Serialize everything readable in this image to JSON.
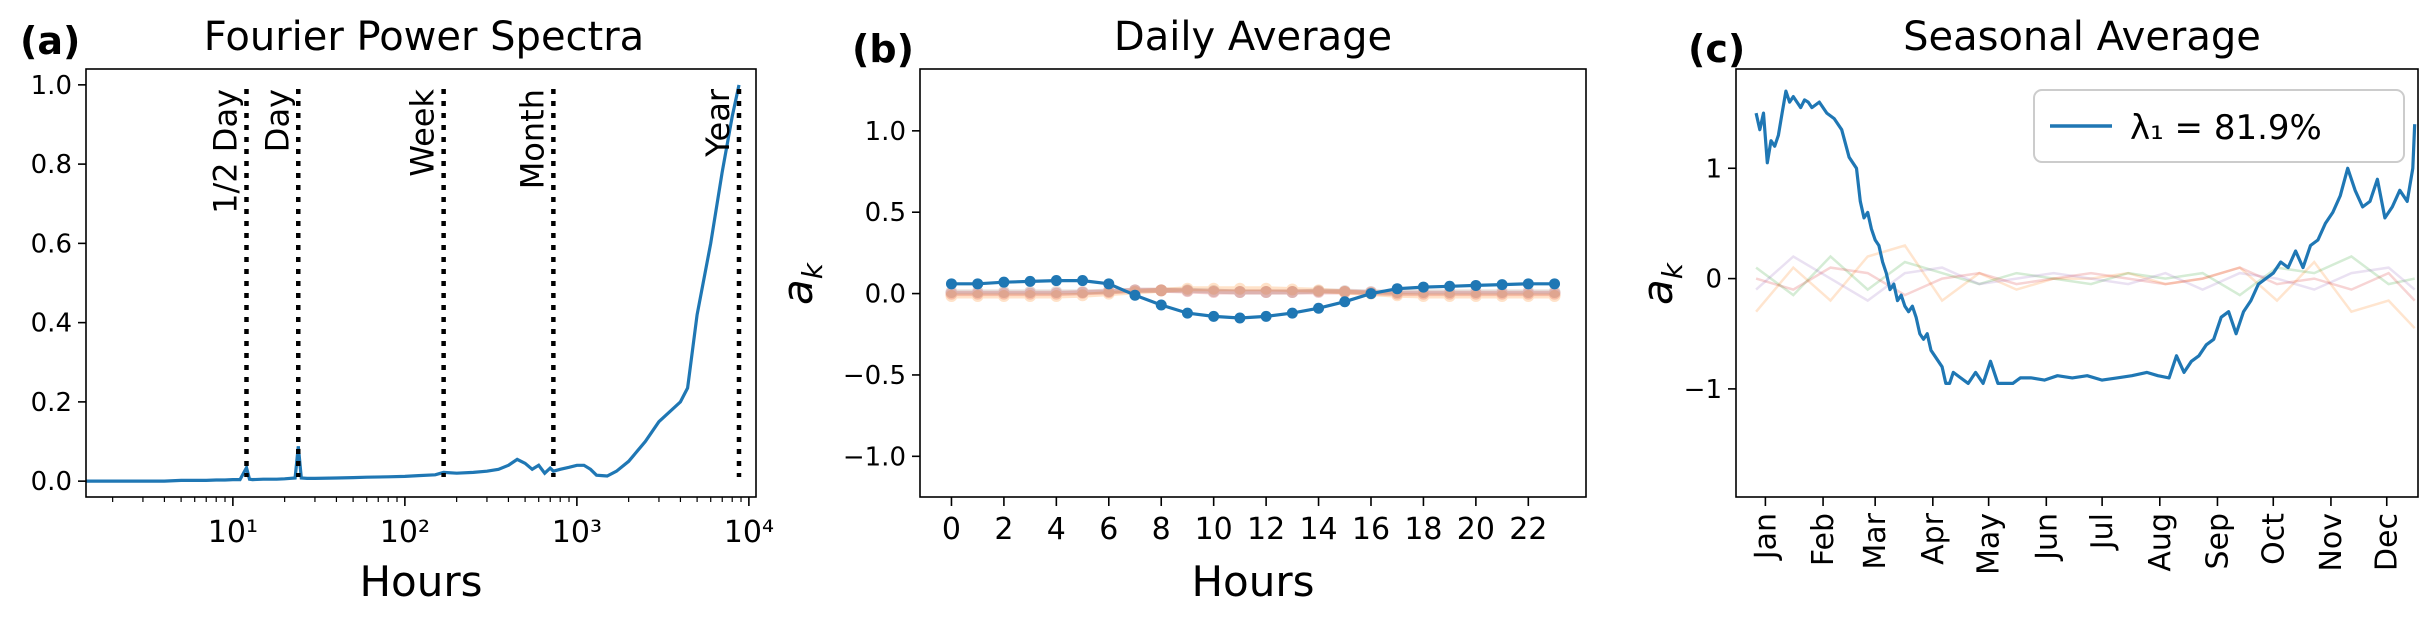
{
  "chart_data": [
    {
      "type": "line",
      "panel_label": "(a)",
      "title": "Fourier Power Spectra",
      "xlabel": "Hours",
      "ylabel": "",
      "xscale": "log",
      "xlim": [
        1.4,
        11000
      ],
      "ylim": [
        -0.04,
        1.04
      ],
      "x_ticks": [
        10,
        100,
        1000,
        10000
      ],
      "x_tick_labels": [
        "10¹",
        "10²",
        "10³",
        "10⁴"
      ],
      "y_ticks": [
        "0.0",
        "0.2",
        "0.4",
        "0.6",
        "0.8",
        "1.0"
      ],
      "grid": false,
      "color": "#1f77b4",
      "series": [
        {
          "x": [
            1.4,
            2,
            3,
            4,
            5,
            6,
            7,
            8,
            9,
            10,
            11,
            12,
            12.5,
            13,
            15,
            18,
            20,
            23,
            24,
            25,
            27,
            30,
            40,
            50,
            60,
            80,
            100,
            120,
            150,
            168,
            200,
            250,
            300,
            350,
            400,
            450,
            500,
            550,
            600,
            650,
            700,
            730,
            800,
            900,
            1000,
            1100,
            1200,
            1300,
            1400,
            1500,
            1700,
            2000,
            2500,
            3000,
            4000,
            4400,
            5000,
            6000,
            7000,
            8000,
            8760
          ],
          "y": [
            0.0,
            0.0,
            0.0,
            0.0,
            0.002,
            0.002,
            0.002,
            0.003,
            0.003,
            0.004,
            0.004,
            0.034,
            0.005,
            0.004,
            0.005,
            0.005,
            0.006,
            0.008,
            0.088,
            0.008,
            0.007,
            0.007,
            0.008,
            0.009,
            0.01,
            0.011,
            0.012,
            0.014,
            0.016,
            0.022,
            0.02,
            0.022,
            0.025,
            0.03,
            0.04,
            0.055,
            0.045,
            0.03,
            0.04,
            0.02,
            0.033,
            0.025,
            0.03,
            0.035,
            0.04,
            0.04,
            0.03,
            0.015,
            0.014,
            0.013,
            0.025,
            0.05,
            0.1,
            0.15,
            0.2,
            0.235,
            0.42,
            0.6,
            0.78,
            0.92,
            1.0
          ]
        }
      ],
      "vlines": [
        {
          "x": 12,
          "label": "1/2 Day"
        },
        {
          "x": 24,
          "label": "Day"
        },
        {
          "x": 168,
          "label": "Week"
        },
        {
          "x": 730,
          "label": "Month"
        },
        {
          "x": 8760,
          "label": "Year"
        }
      ]
    },
    {
      "type": "line",
      "panel_label": "(b)",
      "title": "Daily Average",
      "xlabel": "Hours",
      "ylabel": "a_k",
      "xlim": [
        -1.2,
        24.2
      ],
      "ylim": [
        -1.25,
        1.38
      ],
      "x_ticks": [
        0,
        2,
        4,
        6,
        8,
        10,
        12,
        14,
        16,
        18,
        20,
        22
      ],
      "y_ticks": [
        -1.0,
        -0.5,
        0.0,
        0.5,
        1.0
      ],
      "y_tick_labels": [
        "−1.0",
        "−0.5",
        "0.0",
        "0.5",
        "1.0"
      ],
      "grid": false,
      "series": [
        {
          "color": "#d62728",
          "faded": true,
          "x": [
            0,
            1,
            2,
            3,
            4,
            5,
            6,
            7,
            8,
            9,
            10,
            11,
            12,
            13,
            14,
            15,
            16,
            17,
            18,
            19,
            20,
            21,
            22,
            23
          ],
          "y": [
            0.0,
            0.0,
            0.0,
            0.0,
            0.0,
            0.005,
            0.01,
            0.02,
            0.02,
            0.015,
            0.01,
            0.01,
            0.01,
            0.01,
            0.01,
            0.01,
            0.005,
            0.0,
            0.0,
            0.0,
            0.0,
            0.0,
            0.0,
            0.0
          ]
        },
        {
          "color": "#ff7f0e",
          "faded": true,
          "x": [
            0,
            1,
            2,
            3,
            4,
            5,
            6,
            7,
            8,
            9,
            10,
            11,
            12,
            13,
            14,
            15,
            16,
            17,
            18,
            19,
            20,
            21,
            22,
            23
          ],
          "y": [
            -0.015,
            -0.015,
            -0.015,
            -0.015,
            -0.015,
            -0.01,
            0.0,
            0.01,
            0.02,
            0.03,
            0.03,
            0.03,
            0.03,
            0.025,
            0.02,
            0.01,
            0.0,
            -0.01,
            -0.015,
            -0.015,
            -0.015,
            -0.015,
            -0.015,
            -0.015
          ]
        },
        {
          "color": "#8c564b",
          "faded": true,
          "x": [
            0,
            1,
            2,
            3,
            4,
            5,
            6,
            7,
            8,
            9,
            10,
            11,
            12,
            13,
            14,
            15,
            16,
            17,
            18,
            19,
            20,
            21,
            22,
            23
          ],
          "y": [
            0.01,
            0.01,
            0.01,
            0.01,
            0.01,
            0.01,
            0.015,
            0.02,
            0.02,
            0.02,
            0.015,
            0.01,
            0.01,
            0.01,
            0.015,
            0.015,
            0.01,
            0.01,
            0.01,
            0.01,
            0.01,
            0.01,
            0.01,
            0.01
          ]
        },
        {
          "color": "#1f77b4",
          "faded": false,
          "x": [
            0,
            1,
            2,
            3,
            4,
            5,
            6,
            7,
            8,
            9,
            10,
            11,
            12,
            13,
            14,
            15,
            16,
            17,
            18,
            19,
            20,
            21,
            22,
            23
          ],
          "y": [
            0.06,
            0.06,
            0.07,
            0.075,
            0.08,
            0.08,
            0.06,
            -0.01,
            -0.07,
            -0.12,
            -0.14,
            -0.15,
            -0.14,
            -0.12,
            -0.09,
            -0.05,
            0.0,
            0.03,
            0.04,
            0.045,
            0.05,
            0.055,
            0.06,
            0.06
          ]
        }
      ]
    },
    {
      "type": "line",
      "panel_label": "(c)",
      "title": "Seasonal Average",
      "xlabel": "",
      "ylabel": "a_k",
      "xlim": [
        -0.8,
        365.8
      ],
      "ylim": [
        -1.98,
        1.9
      ],
      "x_ticks": [
        15,
        46,
        74,
        105,
        135,
        166,
        196,
        227,
        258,
        288,
        319,
        349
      ],
      "x_tick_labels": [
        "Jan",
        "Feb",
        "Mar",
        "Apr",
        "May",
        "Jun",
        "Jul",
        "Aug",
        "Sep",
        "Oct",
        "Nov",
        "Dec"
      ],
      "y_ticks": [
        -1,
        0,
        1
      ],
      "y_tick_labels": [
        "−1",
        "0",
        "1"
      ],
      "grid": false,
      "legend": {
        "label": "λ₁ = 81.9%",
        "location": "upper-right",
        "color": "#1f77b4"
      },
      "main_series": {
        "color": "#1f77b4",
        "x": [
          10,
          12,
          14,
          16,
          18,
          20,
          22,
          24,
          26,
          28,
          30,
          32,
          34,
          36,
          38,
          40,
          44,
          48,
          52,
          56,
          60,
          64,
          66,
          68,
          70,
          72,
          74,
          76,
          78,
          80,
          82,
          84,
          86,
          88,
          90,
          92,
          94,
          96,
          98,
          100,
          102,
          104,
          106,
          108,
          110,
          112,
          114,
          116,
          120,
          124,
          128,
          132,
          136,
          140,
          144,
          148,
          152,
          158,
          165,
          172,
          180,
          188,
          196,
          204,
          212,
          220,
          226,
          232,
          236,
          240,
          244,
          248,
          252,
          256,
          260,
          264,
          268,
          272,
          276,
          280,
          284,
          288,
          292,
          296,
          300,
          304,
          308,
          312,
          316,
          320,
          324,
          328,
          332,
          336,
          340,
          344,
          348,
          352,
          356,
          360,
          363,
          364
        ],
        "y": [
          1.5,
          1.35,
          1.5,
          1.05,
          1.25,
          1.2,
          1.3,
          1.5,
          1.7,
          1.6,
          1.65,
          1.6,
          1.55,
          1.62,
          1.6,
          1.55,
          1.6,
          1.5,
          1.45,
          1.35,
          1.1,
          1.0,
          0.7,
          0.55,
          0.6,
          0.45,
          0.35,
          0.3,
          0.15,
          0.05,
          -0.1,
          -0.05,
          -0.2,
          -0.15,
          -0.25,
          -0.3,
          -0.25,
          -0.35,
          -0.5,
          -0.55,
          -0.5,
          -0.65,
          -0.7,
          -0.75,
          -0.8,
          -0.95,
          -0.95,
          -0.85,
          -0.9,
          -0.95,
          -0.85,
          -0.95,
          -0.75,
          -0.95,
          -0.95,
          -0.95,
          -0.9,
          -0.9,
          -0.92,
          -0.88,
          -0.9,
          -0.88,
          -0.92,
          -0.9,
          -0.88,
          -0.85,
          -0.88,
          -0.9,
          -0.7,
          -0.85,
          -0.75,
          -0.7,
          -0.6,
          -0.55,
          -0.35,
          -0.3,
          -0.5,
          -0.3,
          -0.2,
          -0.05,
          0.0,
          0.05,
          0.15,
          0.1,
          0.25,
          0.1,
          0.3,
          0.35,
          0.5,
          0.6,
          0.75,
          1.0,
          0.8,
          0.65,
          0.7,
          0.9,
          0.55,
          0.65,
          0.8,
          0.7,
          1.0,
          1.4
        ]
      },
      "faded_series": [
        {
          "color": "#ff7f0e",
          "x": [
            10,
            30,
            50,
            70,
            90,
            110,
            130,
            150,
            170,
            190,
            210,
            230,
            250,
            270,
            290,
            310,
            330,
            350,
            364
          ],
          "y": [
            -0.3,
            0.1,
            -0.2,
            0.2,
            0.3,
            -0.2,
            0.05,
            -0.1,
            0.0,
            0.0,
            0.05,
            -0.05,
            0.0,
            0.1,
            -0.2,
            0.15,
            -0.3,
            -0.2,
            -0.45
          ]
        },
        {
          "color": "#2ca02c",
          "x": [
            10,
            30,
            50,
            70,
            90,
            110,
            130,
            150,
            170,
            190,
            210,
            230,
            250,
            270,
            290,
            310,
            330,
            350,
            364
          ],
          "y": [
            0.1,
            -0.15,
            0.2,
            -0.1,
            0.15,
            0.05,
            -0.05,
            0.05,
            0.0,
            -0.05,
            0.05,
            0.0,
            0.05,
            -0.15,
            0.1,
            0.05,
            0.2,
            -0.05,
            0.0
          ]
        },
        {
          "color": "#9467bd",
          "x": [
            10,
            30,
            50,
            70,
            90,
            110,
            130,
            150,
            170,
            190,
            210,
            230,
            250,
            270,
            290,
            310,
            330,
            350,
            364
          ],
          "y": [
            -0.1,
            0.2,
            0.0,
            -0.2,
            0.05,
            0.1,
            -0.05,
            0.0,
            0.05,
            0.0,
            -0.05,
            0.05,
            -0.1,
            0.05,
            0.0,
            -0.1,
            0.05,
            0.1,
            -0.1
          ]
        },
        {
          "color": "#d62728",
          "x": [
            10,
            30,
            50,
            70,
            90,
            110,
            130,
            150,
            170,
            190,
            210,
            230,
            250,
            270,
            290,
            310,
            330,
            350,
            364
          ],
          "y": [
            0.0,
            -0.1,
            0.1,
            0.05,
            -0.15,
            0.0,
            0.05,
            -0.05,
            0.0,
            0.05,
            0.0,
            -0.05,
            0.0,
            0.1,
            -0.05,
            0.0,
            -0.1,
            0.05,
            -0.2
          ]
        }
      ]
    }
  ]
}
